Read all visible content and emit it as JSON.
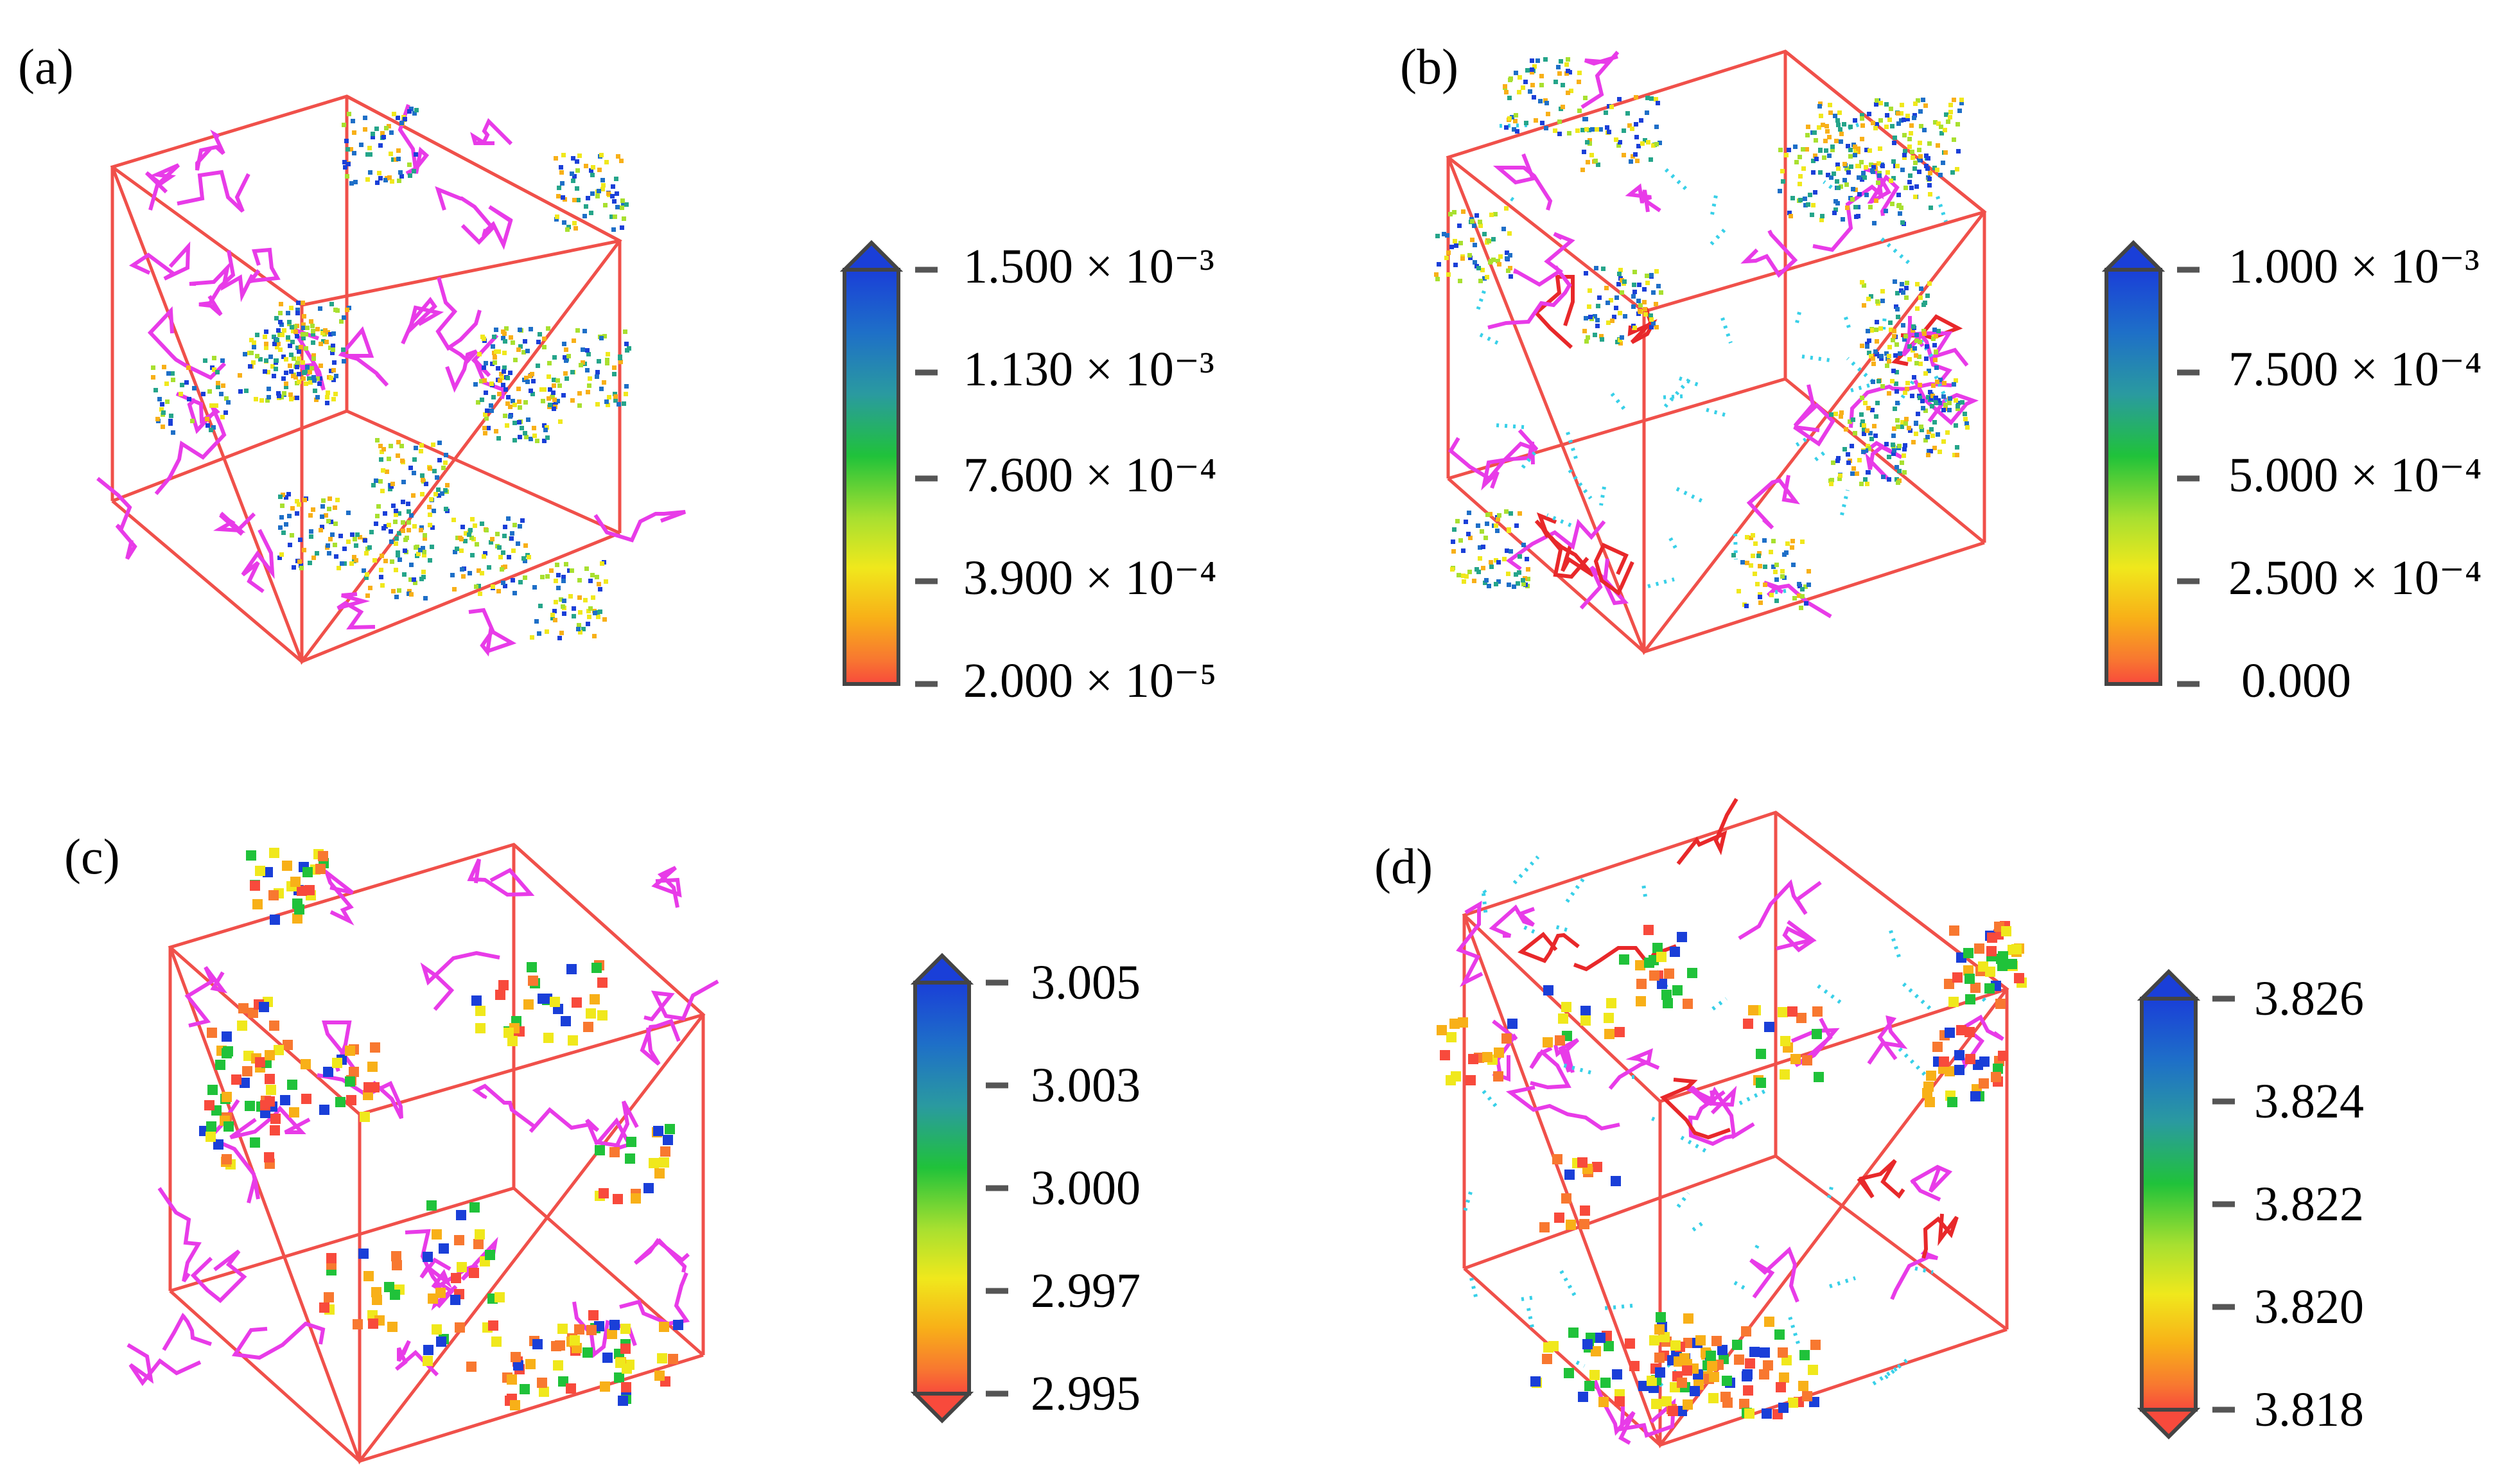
{
  "panels": [
    {
      "label": "(a)",
      "colorbar": {
        "ticks": [
          "1.500 × 10⁻³",
          "1.130 × 10⁻³",
          "7.600 × 10⁻⁴",
          "3.900 × 10⁻⁴",
          "2.000 × 10⁻⁵"
        ],
        "bottom_cap": "flat"
      },
      "point_style": "fine",
      "has_cyan_dots": false
    },
    {
      "label": "(b)",
      "colorbar": {
        "ticks": [
          "1.000 × 10⁻³",
          "7.500 × 10⁻⁴",
          "5.000 × 10⁻⁴",
          "2.500 × 10⁻⁴",
          "0.000"
        ],
        "bottom_cap": "flat"
      },
      "point_style": "fine",
      "has_cyan_dots": true
    },
    {
      "label": "(c)",
      "colorbar": {
        "ticks": [
          "3.005",
          "3.003",
          "3.000",
          "2.997",
          "2.995"
        ],
        "bottom_cap": "arrow"
      },
      "point_style": "coarse",
      "has_cyan_dots": false
    },
    {
      "label": "(d)",
      "colorbar": {
        "ticks": [
          "3.826",
          "3.824",
          "3.822",
          "3.820",
          "3.818"
        ],
        "bottom_cap": "arrow"
      },
      "point_style": "coarse",
      "has_cyan_dots": true
    }
  ],
  "colors": {
    "cube_edge": "#f0504a",
    "molecule": "#e83be8",
    "cyan_dots": "#38d0e8",
    "red_bonds": "#e8282a",
    "colormap": [
      "#1a3fd8",
      "#1e6fc8",
      "#25a58a",
      "#20c23a",
      "#a8e030",
      "#f0e81c",
      "#f8b018",
      "#f87830",
      "#f84a3c"
    ]
  }
}
